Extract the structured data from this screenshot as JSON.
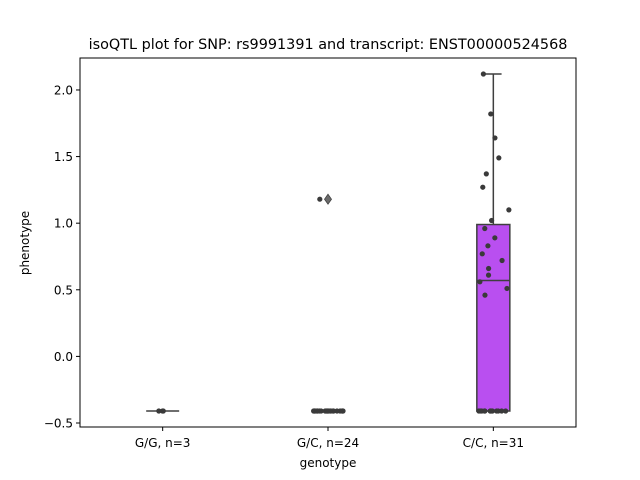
{
  "chart_data": {
    "type": "box",
    "title": "isoQTL plot for SNP: rs9991391 and transcript: ENST00000524568",
    "xlabel": "genotype",
    "ylabel": "phenotype",
    "categories": [
      "G/G, n=3",
      "G/C, n=24",
      "C/C, n=31"
    ],
    "ylim": [
      -0.53,
      2.24
    ],
    "yticks": [
      -0.5,
      0.0,
      0.5,
      1.0,
      1.5,
      2.0
    ],
    "ytick_labels": [
      "−0.5",
      "0.0",
      "0.5",
      "1.0",
      "1.5",
      "2.0"
    ],
    "colors": {
      "box_fill": "#B94FF0",
      "box_edge": "#3F3F3F",
      "points": "#3A3A3A"
    },
    "boxes": [
      {
        "category": "G/G, n=3",
        "q1": -0.41,
        "median": -0.41,
        "q3": -0.41,
        "whisker_low": -0.41,
        "whisker_high": -0.41,
        "outliers": []
      },
      {
        "category": "G/C, n=24",
        "q1": -0.41,
        "median": -0.41,
        "q3": -0.41,
        "whisker_low": -0.41,
        "whisker_high": -0.41,
        "outliers": [
          1.18
        ]
      },
      {
        "category": "C/C, n=31",
        "q1": -0.41,
        "median": 0.57,
        "q3": 0.99,
        "whisker_low": -0.41,
        "whisker_high": 2.12,
        "outliers": []
      }
    ],
    "points": [
      {
        "category": "G/G, n=3",
        "values": [
          -0.41,
          -0.41,
          -0.41
        ]
      },
      {
        "category": "G/C, n=24",
        "values": [
          1.18,
          -0.41,
          -0.41,
          -0.41,
          -0.41,
          -0.41,
          -0.41,
          -0.41,
          -0.41,
          -0.41,
          -0.41,
          -0.41,
          -0.41,
          -0.41,
          -0.41,
          -0.41,
          -0.41,
          -0.41,
          -0.41,
          -0.41,
          -0.41,
          -0.41,
          -0.41,
          -0.41
        ]
      },
      {
        "category": "C/C, n=31",
        "values": [
          2.12,
          1.82,
          1.64,
          1.49,
          1.37,
          1.27,
          1.1,
          1.02,
          0.96,
          0.89,
          0.83,
          0.77,
          0.72,
          0.66,
          0.61,
          0.56,
          0.51,
          0.46,
          -0.41,
          -0.41,
          -0.41,
          -0.41,
          -0.41,
          -0.41,
          -0.41,
          -0.41,
          -0.41,
          -0.41,
          -0.41,
          -0.41,
          -0.41
        ]
      }
    ]
  }
}
